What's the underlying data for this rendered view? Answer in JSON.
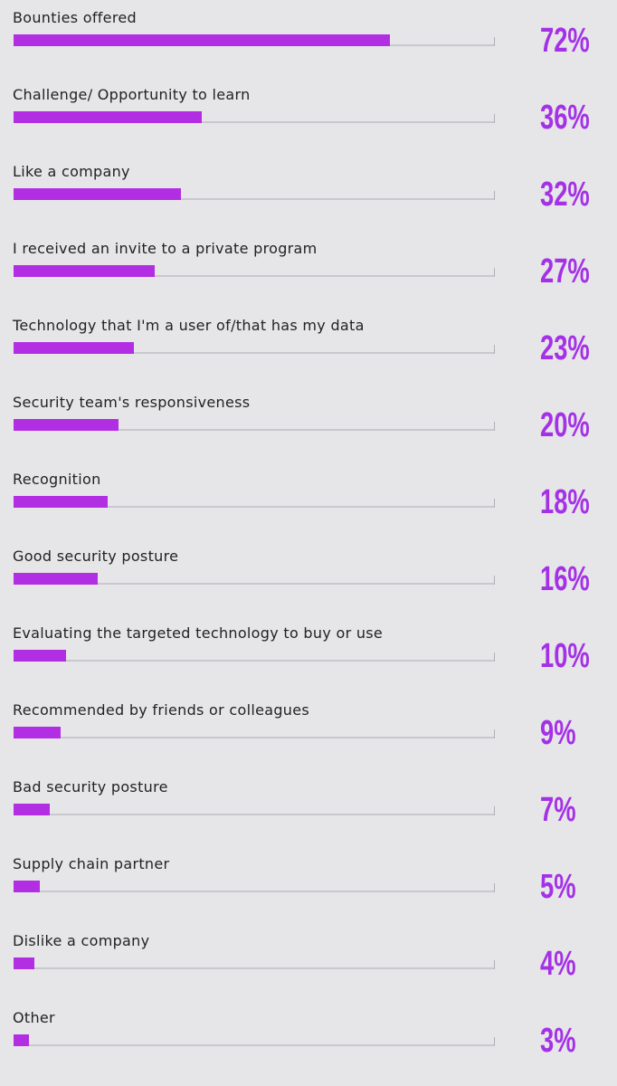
{
  "colors": {
    "background": "#e6e6e9",
    "bar": "#b22ee3",
    "percent_text": "#a531e6",
    "track": "#c8c8cd",
    "label_text": "#222222"
  },
  "chart_data": {
    "type": "bar",
    "orientation": "horizontal",
    "categories": [
      "Bounties offered",
      "Challenge/ Opportunity to learn",
      "Like a company",
      "I received an invite to a private program",
      "Technology that I'm a user of/that has my data",
      "Security team's responsiveness",
      "Recognition",
      "Good security posture",
      "Evaluating the targeted technology to buy or use",
      "Recommended by friends or colleagues",
      "Bad security posture",
      "Supply chain partner",
      "Dislike a company",
      "Other"
    ],
    "values": [
      72,
      36,
      32,
      27,
      23,
      20,
      18,
      16,
      10,
      9,
      7,
      5,
      4,
      3
    ],
    "value_labels": [
      "72%",
      "36%",
      "32%",
      "27%",
      "23%",
      "20%",
      "18%",
      "16%",
      "10%",
      "9%",
      "7%",
      "5%",
      "4%",
      "3%"
    ],
    "xlim": [
      0,
      92
    ],
    "grid": false,
    "legend": "none"
  }
}
